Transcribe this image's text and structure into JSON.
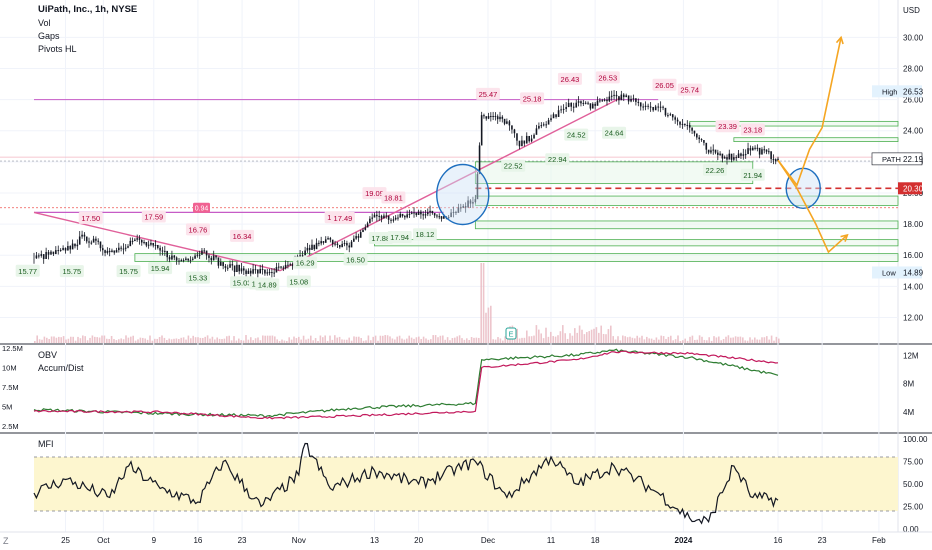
{
  "header": {
    "symbol": "UiPath, Inc., 1h, NYSE",
    "indicators": [
      "Vol",
      "Gaps",
      "Pivots HL"
    ],
    "currency": "USD"
  },
  "colors": {
    "candle": "#131722",
    "trendline": "#e0609a",
    "resistance": "#c65bc6",
    "support_box": "#4caf50",
    "dashed_level": "#d32f2f",
    "projection": "#f5a623",
    "circle": "#1e6fbf",
    "obv": "#c2185b",
    "accum": "#2e7d32",
    "mfi_band": "#fdf6cf"
  },
  "chart_data": [
    {
      "type": "line",
      "title": "UiPath, Inc., 1h, NYSE",
      "ylabel": "USD",
      "ylim": [
        11,
        31.5
      ],
      "y_ticks": [
        "12.00",
        "14.00",
        "16.00",
        "18.00",
        "20.00",
        "22.00",
        "24.00",
        "26.00",
        "28.00",
        "30.00"
      ],
      "x_ticks": [
        "25",
        "Oct",
        "9",
        "16",
        "23",
        "Nov",
        "13",
        "20",
        "Dec",
        "11",
        "18",
        "2024",
        "16",
        "23",
        "Feb"
      ],
      "price_path": [
        [
          "Sep 20",
          15.8
        ],
        [
          "Sep 25",
          16.3
        ],
        [
          "Sep 28",
          17.2
        ],
        [
          "Oct 2",
          16.2
        ],
        [
          "Oct 6",
          17.0
        ],
        [
          "Oct 10",
          16.3
        ],
        [
          "Oct 13",
          15.6
        ],
        [
          "Oct 17",
          16.3
        ],
        [
          "Oct 20",
          15.3
        ],
        [
          "Oct 24",
          15.0
        ],
        [
          "Oct 27",
          14.9
        ],
        [
          "Oct 31",
          15.3
        ],
        [
          "Nov 2",
          16.3
        ],
        [
          "Nov 6",
          17.0
        ],
        [
          "Nov 9",
          16.5
        ],
        [
          "Nov 13",
          18.6
        ],
        [
          "Nov 16",
          18.3
        ],
        [
          "Nov 20",
          18.8
        ],
        [
          "Nov 24",
          18.5
        ],
        [
          "Nov 29",
          19.6
        ],
        [
          "Nov 30",
          25.0
        ],
        [
          "Dec 4",
          24.6
        ],
        [
          "Dec 6",
          23.0
        ],
        [
          "Dec 11",
          24.8
        ],
        [
          "Dec 13",
          25.4
        ],
        [
          "Dec 15",
          25.8
        ],
        [
          "Dec 18",
          25.6
        ],
        [
          "Dec 21",
          26.3
        ],
        [
          "Dec 26",
          25.6
        ],
        [
          "Dec 28",
          25.5
        ],
        [
          "Jan 2",
          24.2
        ],
        [
          "Jan 5",
          22.6
        ],
        [
          "Jan 9",
          22.3
        ],
        [
          "Jan 12",
          22.9
        ],
        [
          "Jan 16",
          22.2
        ]
      ],
      "pivot_labels": [
        {
          "text": "15.77",
          "at": [
            "Sep 19",
            15.77
          ]
        },
        {
          "text": "17.50",
          "at": [
            "Sep 29",
            17.5
          ]
        },
        {
          "text": "15.75",
          "at": [
            "Sep 26",
            15.75
          ]
        },
        {
          "text": "15.75",
          "at": [
            "Oct 5",
            15.75
          ]
        },
        {
          "text": "17.59",
          "at": [
            "Oct 9",
            17.59
          ]
        },
        {
          "text": "15.94",
          "at": [
            "Oct 10",
            15.94
          ]
        },
        {
          "text": "16.76",
          "at": [
            "Oct 16",
            16.76
          ]
        },
        {
          "text": "15.33",
          "at": [
            "Oct 16",
            15.33
          ]
        },
        {
          "text": "16.34",
          "at": [
            "Oct 23",
            16.34
          ]
        },
        {
          "text": "15.03",
          "at": [
            "Oct 23",
            15.03
          ]
        },
        {
          "text": "14.95",
          "at": [
            "Oct 26",
            14.95
          ]
        },
        {
          "text": "14.89",
          "at": [
            "Oct 27",
            14.89
          ]
        },
        {
          "text": "15.08",
          "at": [
            "Nov 1",
            15.08
          ]
        },
        {
          "text": "16.29",
          "at": [
            "Nov 2",
            16.29
          ]
        },
        {
          "text": "17.54",
          "at": [
            "Nov 7",
            17.54
          ]
        },
        {
          "text": "17.49",
          "at": [
            "Nov 8",
            17.49
          ]
        },
        {
          "text": "16.50",
          "at": [
            "Nov 10",
            16.5
          ]
        },
        {
          "text": "19.09",
          "at": [
            "Nov 13",
            19.09
          ]
        },
        {
          "text": "18.81",
          "at": [
            "Nov 16",
            18.81
          ]
        },
        {
          "text": "17.88",
          "at": [
            "Nov 14",
            17.88
          ]
        },
        {
          "text": "17.94",
          "at": [
            "Nov 17",
            17.94
          ]
        },
        {
          "text": "18.12",
          "at": [
            "Nov 21",
            18.12
          ]
        },
        {
          "text": "25.47",
          "at": [
            "Dec 1",
            25.47
          ]
        },
        {
          "text": "22.52",
          "at": [
            "Dec 5",
            22.52
          ]
        },
        {
          "text": "25.18",
          "at": [
            "Dec 8",
            25.18
          ]
        },
        {
          "text": "22.94",
          "at": [
            "Dec 12",
            22.94
          ]
        },
        {
          "text": "26.43",
          "at": [
            "Dec 14",
            26.43
          ]
        },
        {
          "text": "24.52",
          "at": [
            "Dec 15",
            24.52
          ]
        },
        {
          "text": "26.53",
          "at": [
            "Dec 20",
            26.53
          ]
        },
        {
          "text": "24.64",
          "at": [
            "Dec 21",
            24.64
          ]
        },
        {
          "text": "26.05",
          "at": [
            "Dec 29",
            26.05
          ]
        },
        {
          "text": "25.74",
          "at": [
            "Jan 2",
            25.74
          ]
        },
        {
          "text": "23.39",
          "at": [
            "Jan 8",
            23.39
          ]
        },
        {
          "text": "23.18",
          "at": [
            "Jan 12",
            23.18
          ]
        },
        {
          "text": "22.26",
          "at": [
            "Jan 6",
            22.26
          ]
        },
        {
          "text": "21.94",
          "at": [
            "Jan 12",
            21.94
          ]
        }
      ],
      "price_badges": [
        {
          "label": "PATH",
          "value": "22.19",
          "y": 22.19
        },
        {
          "label": "",
          "value": "20.30",
          "y": 20.3
        },
        {
          "label": "High",
          "value": "26.53",
          "y": 26.53
        },
        {
          "label": "Low",
          "value": "14.89",
          "y": 14.89
        }
      ],
      "gap_label": "0.94",
      "earnings_marker": "E",
      "projection_up": [
        [
          "Jan 16",
          22.1
        ],
        [
          "Jan 19",
          20.5
        ],
        [
          "Jan 21",
          22.8
        ],
        [
          "Jan 23",
          24.2
        ],
        [
          "Jan 26",
          30.0
        ]
      ],
      "projection_down": [
        [
          "Jan 16",
          22.1
        ],
        [
          "Jan 19",
          20.3
        ],
        [
          "Jan 22",
          18.0
        ],
        [
          "Jan 24",
          16.2
        ],
        [
          "Jan 27",
          17.3
        ]
      ]
    },
    {
      "type": "line",
      "title": "",
      "series": [
        {
          "name": "OBV"
        },
        {
          "name": "Accum/Dist"
        }
      ],
      "left_ticks": [
        "12.5M",
        "10M",
        "7.5M",
        "5M",
        "2.5M"
      ],
      "right_ticks": [
        "12M",
        "8M",
        "4M"
      ],
      "obv_path": [
        [
          "Sep 20",
          4.4
        ],
        [
          "Oct 10",
          4.3
        ],
        [
          "Oct 27",
          3.5
        ],
        [
          "Nov 10",
          3.8
        ],
        [
          "Nov 29",
          4.4
        ],
        [
          "Nov 30",
          10.0
        ],
        [
          "Dec 15",
          11.0
        ],
        [
          "Dec 21",
          12.0
        ],
        [
          "Jan 2",
          11.8
        ],
        [
          "Jan 16",
          10.6
        ]
      ],
      "accum_path": [
        [
          "Sep 20",
          4.6
        ],
        [
          "Oct 10",
          4.1
        ],
        [
          "Oct 27",
          3.8
        ],
        [
          "Nov 10",
          4.8
        ],
        [
          "Nov 29",
          5.4
        ],
        [
          "Nov 30",
          11.0
        ],
        [
          "Dec 15",
          11.6
        ],
        [
          "Dec 21",
          12.2
        ],
        [
          "Jan 2",
          11.3
        ],
        [
          "Jan 16",
          9.0
        ]
      ]
    },
    {
      "type": "line",
      "title": "",
      "series": [
        {
          "name": "MFI"
        }
      ],
      "ylim": [
        0,
        100
      ],
      "y_ticks": [
        "100.00",
        "75.00",
        "50.00",
        "25.00",
        "0.00"
      ],
      "band": [
        20,
        80
      ],
      "mfi_path": [
        [
          "Sep 20",
          40
        ],
        [
          "Sep 25",
          55
        ],
        [
          "Oct 2",
          35
        ],
        [
          "Oct 5",
          70
        ],
        [
          "Oct 10",
          45
        ],
        [
          "Oct 16",
          30
        ],
        [
          "Oct 20",
          75
        ],
        [
          "Oct 26",
          25
        ],
        [
          "Nov 1",
          60
        ],
        [
          "Nov 2",
          95
        ],
        [
          "Nov 6",
          45
        ],
        [
          "Nov 13",
          65
        ],
        [
          "Nov 20",
          50
        ],
        [
          "Nov 29",
          75
        ],
        [
          "Dec 4",
          35
        ],
        [
          "Dec 11",
          80
        ],
        [
          "Dec 15",
          50
        ],
        [
          "Dec 21",
          70
        ],
        [
          "Dec 28",
          40
        ],
        [
          "Jan 2",
          12
        ],
        [
          "Jan 5",
          8
        ],
        [
          "Jan 9",
          70
        ],
        [
          "Jan 12",
          35
        ],
        [
          "Jan 16",
          32
        ]
      ]
    }
  ]
}
